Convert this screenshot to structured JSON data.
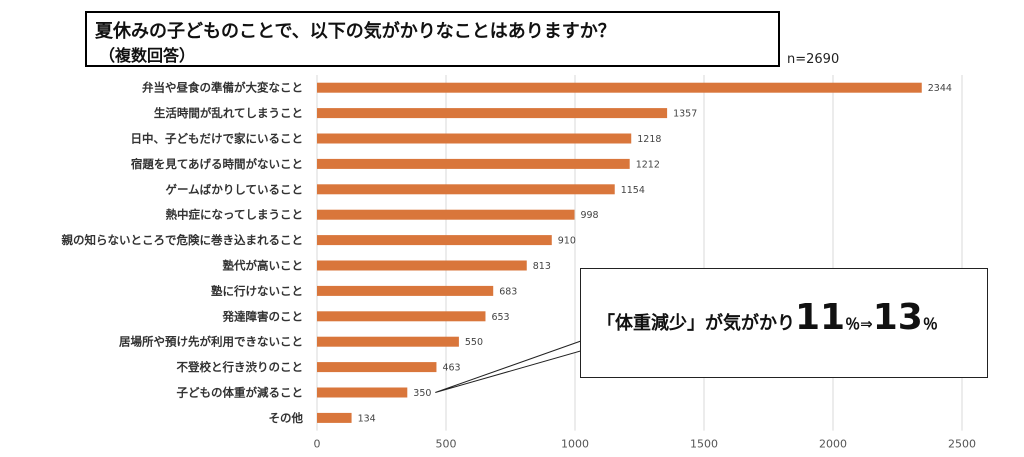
{
  "title": {
    "line1": "夏休みの子どものことで、以下の気がかりなことはありますか？",
    "line2": "（複数回答）"
  },
  "sample_size": "n=2690",
  "callout": {
    "text": "「体重減少」が気がかり",
    "from_value": "11",
    "from_unit": "％",
    "arrow": "⇒",
    "to_value": "13",
    "to_unit": "％",
    "points_to": "子どもの体重が減ること"
  },
  "colors": {
    "bar": "#d9763b",
    "grid": "#d9d9d9"
  },
  "chart_data": {
    "type": "bar",
    "orientation": "horizontal",
    "categories": [
      "弁当や昼食の準備が大変なこと",
      "生活時間が乱れてしまうこと",
      "日中、子どもだけで家にいること",
      "宿題を見てあげる時間がないこと",
      "ゲームばかりしていること",
      "熱中症になってしまうこと",
      "親の知らないところで危険に巻き込まれること",
      "塾代が高いこと",
      "塾に行けないこと",
      "発達障害のこと",
      "居場所や預け先が利用できないこと",
      "不登校と行き渋りのこと",
      "子どもの体重が減ること",
      "その他"
    ],
    "values": [
      2344,
      1357,
      1218,
      1212,
      1154,
      998,
      910,
      813,
      683,
      653,
      550,
      463,
      350,
      134
    ],
    "xlim": [
      0,
      2500
    ],
    "xticks": [
      0,
      500,
      1000,
      1500,
      2000,
      2500
    ],
    "grid": "vertical",
    "data_labels": true
  }
}
